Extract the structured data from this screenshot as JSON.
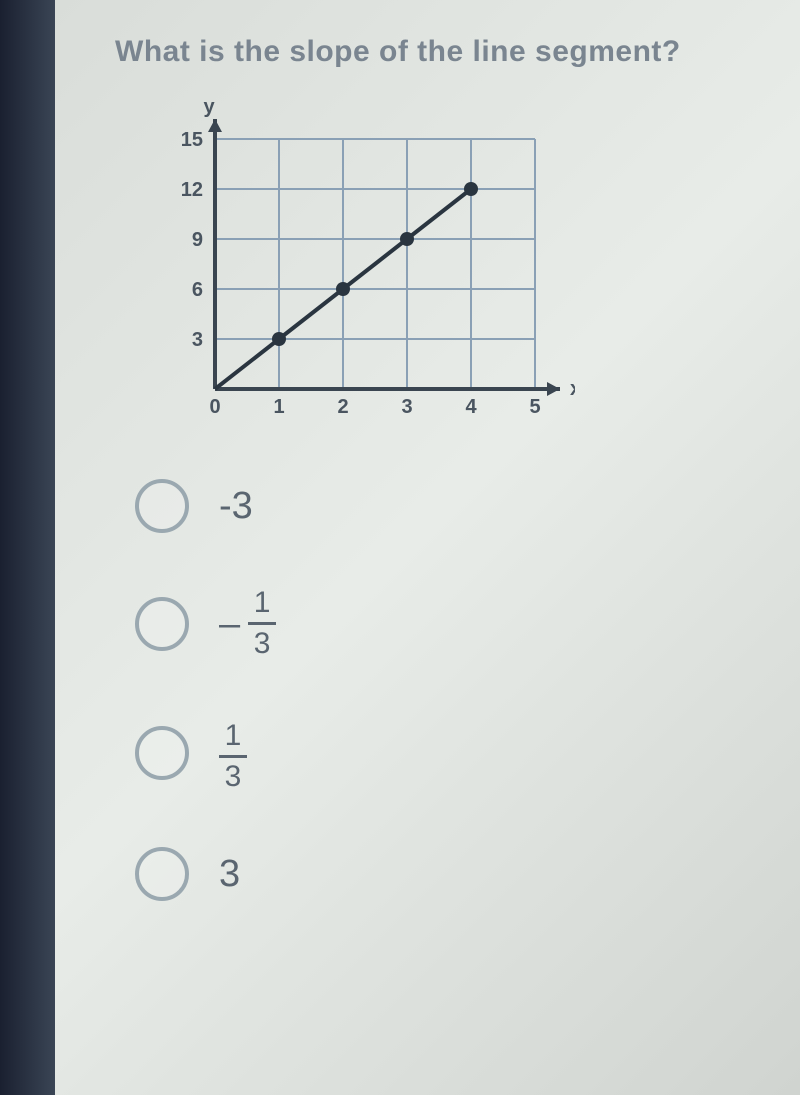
{
  "question": {
    "title": "What is the slope of the line segment?"
  },
  "chart": {
    "type": "scatter-line",
    "x_axis_label": "x",
    "y_axis_label": "y",
    "xlim": [
      0,
      5
    ],
    "ylim": [
      0,
      15
    ],
    "xtick_step": 1,
    "ytick_step": 3,
    "xticks": [
      0,
      1,
      2,
      3,
      4,
      5
    ],
    "yticks": [
      0,
      3,
      6,
      9,
      12,
      15
    ],
    "grid_color": "#8aa0b5",
    "axis_color": "#3a4550",
    "background_color": "transparent",
    "line_color": "#2a3540",
    "line_width": 4,
    "marker_color": "#2a3540",
    "marker_radius": 7,
    "tick_font_size": 20,
    "tick_color": "#4a5560",
    "axis_label_color": "#4a5560",
    "points": [
      {
        "x": 0,
        "y": 0
      },
      {
        "x": 1,
        "y": 3
      },
      {
        "x": 2,
        "y": 6
      },
      {
        "x": 3,
        "y": 9
      },
      {
        "x": 4,
        "y": 12
      }
    ]
  },
  "options": [
    {
      "key": "a",
      "display": "-3",
      "is_fraction": false
    },
    {
      "key": "b",
      "display_num": "1",
      "display_den": "3",
      "negative": true,
      "is_fraction": true
    },
    {
      "key": "c",
      "display_num": "1",
      "display_den": "3",
      "negative": false,
      "is_fraction": true
    },
    {
      "key": "d",
      "display": "3",
      "is_fraction": false
    }
  ]
}
